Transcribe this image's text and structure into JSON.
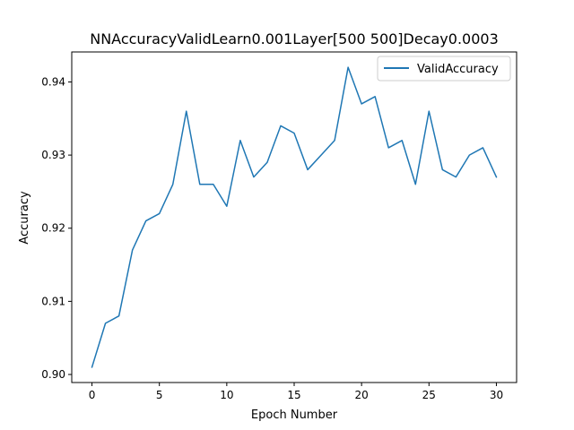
{
  "chart_data": {
    "type": "line",
    "title": "NNAccuracyValidLearn0.001Layer[500 500]Decay0.0003",
    "xlabel": "Epoch Number",
    "ylabel": "Accuracy",
    "xlim": [
      -1.5,
      31.5
    ],
    "ylim": [
      0.8989,
      0.9441
    ],
    "xticks": [
      0,
      5,
      10,
      15,
      20,
      25,
      30
    ],
    "yticks": [
      0.9,
      0.91,
      0.92,
      0.93,
      0.94
    ],
    "ytick_labels": [
      "0.90",
      "0.91",
      "0.92",
      "0.93",
      "0.94"
    ],
    "grid": false,
    "legend_position": "upper right",
    "series": [
      {
        "name": "ValidAccuracy",
        "color": "#1f77b4",
        "x": [
          0,
          1,
          2,
          3,
          4,
          5,
          6,
          7,
          8,
          9,
          10,
          11,
          12,
          13,
          14,
          15,
          16,
          17,
          18,
          19,
          20,
          21,
          22,
          23,
          24,
          25,
          26,
          27,
          28,
          29,
          30
        ],
        "y": [
          0.901,
          0.907,
          0.908,
          0.917,
          0.921,
          0.922,
          0.926,
          0.936,
          0.926,
          0.926,
          0.923,
          0.932,
          0.927,
          0.929,
          0.934,
          0.933,
          0.928,
          0.93,
          0.932,
          0.942,
          0.937,
          0.938,
          0.931,
          0.932,
          0.926,
          0.936,
          0.928,
          0.927,
          0.93,
          0.931,
          0.927
        ]
      }
    ]
  }
}
